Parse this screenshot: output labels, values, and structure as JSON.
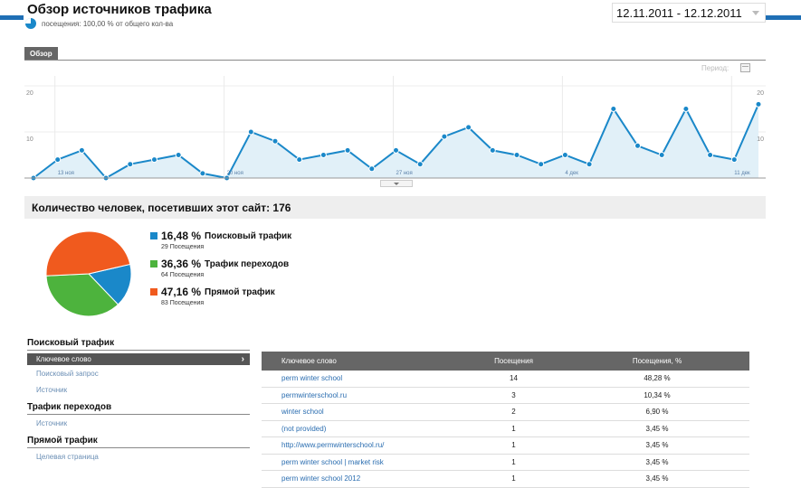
{
  "header": {
    "title": "Обзор источников трафика",
    "subtitle": "посещения: 100,00 % от общего кол-ва",
    "date_range": "12.11.2011 - 12.12.2011"
  },
  "tabs": [
    {
      "label": "Обзор"
    }
  ],
  "period_label": "Период:",
  "chart_data": {
    "type": "area",
    "y_axis_left": [
      "20",
      "10"
    ],
    "y_axis_right": [
      "20",
      "10"
    ],
    "ylim": [
      0,
      20
    ],
    "x_tick_labels": [
      "13 ноя",
      "20 ноя",
      "27 ноя",
      "4 дек",
      "11 дек"
    ],
    "values": [
      0,
      4,
      6,
      0,
      3,
      4,
      5,
      1,
      0,
      10,
      8,
      4,
      5,
      6,
      2,
      6,
      3,
      9,
      11,
      6,
      5,
      3,
      5,
      3,
      15,
      7,
      5,
      15,
      5,
      4,
      16
    ],
    "colors": {
      "line": "#1a88c9",
      "fill": "#e1f0f8"
    }
  },
  "summary": {
    "visitors_label": "Количество человек, посетивших этот сайт: 176"
  },
  "pie_data": {
    "slices": [
      {
        "percent": "16,48 %",
        "value": 16.48,
        "name": "Поисковый трафик",
        "sub": "29 Посещения",
        "color": "#1a88c9"
      },
      {
        "percent": "36,36 %",
        "value": 36.36,
        "name": "Трафик переходов",
        "sub": "64 Посещения",
        "color": "#4db33d"
      },
      {
        "percent": "47,16 %",
        "value": 47.16,
        "name": "Прямой трафик",
        "sub": "83 Посещения",
        "color": "#f05a1e"
      }
    ]
  },
  "nav": {
    "search_title": "Поисковый трафик",
    "search_items": [
      "Ключевое слово",
      "Поисковый запрос",
      "Источник"
    ],
    "referral_title": "Трафик переходов",
    "referral_items": [
      "Источник"
    ],
    "direct_title": "Прямой трафик",
    "direct_items": [
      "Целевая страница"
    ]
  },
  "table": {
    "headers": [
      "Ключевое слово",
      "Посещения",
      "Посещения, %"
    ],
    "rows": [
      [
        "perm winter school",
        "14",
        "48,28 %"
      ],
      [
        "permwinterschool.ru",
        "3",
        "10,34 %"
      ],
      [
        "winter school",
        "2",
        "6,90 %"
      ],
      [
        "(not provided)",
        "1",
        "3,45 %"
      ],
      [
        "http://www.permwinterschool.ru/",
        "1",
        "3,45 %"
      ],
      [
        "perm winter school | market risk",
        "1",
        "3,45 %"
      ],
      [
        "perm winter school 2012",
        "1",
        "3,45 %"
      ]
    ]
  }
}
